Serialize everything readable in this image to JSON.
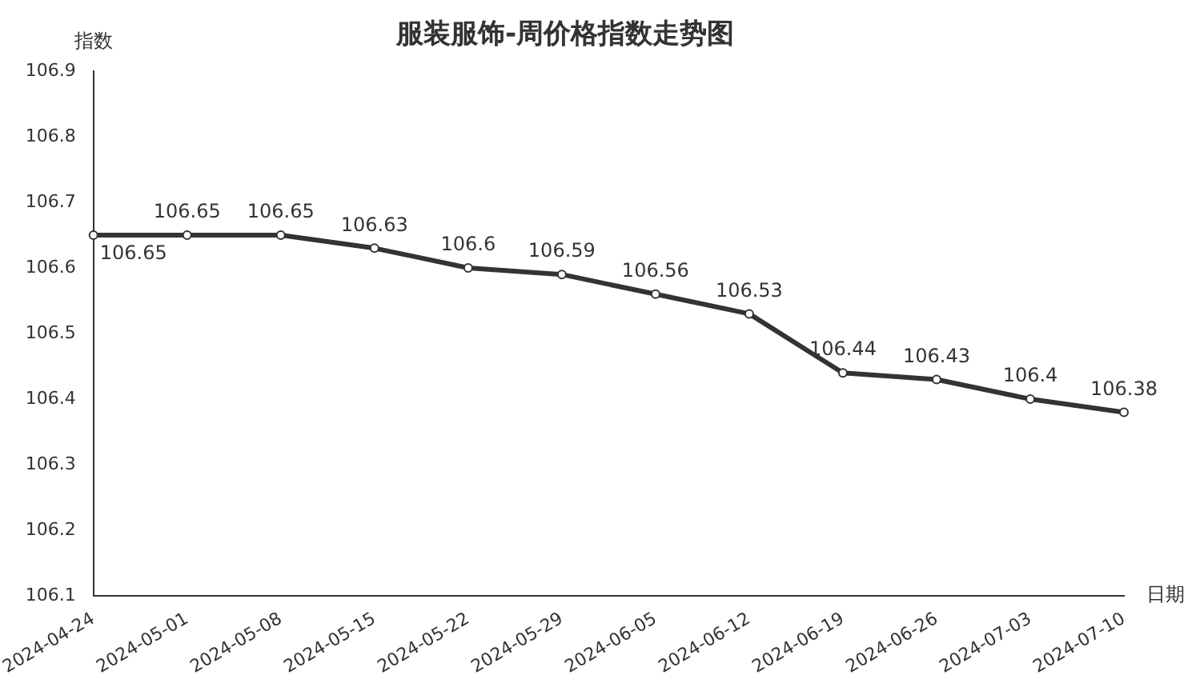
{
  "chart_data": {
    "type": "line",
    "title": "服装服饰-周价格指数走势图",
    "xlabel": "日期",
    "ylabel": "指数",
    "categories": [
      "2024-04-24",
      "2024-05-01",
      "2024-05-08",
      "2024-05-15",
      "2024-05-22",
      "2024-05-29",
      "2024-06-05",
      "2024-06-12",
      "2024-06-19",
      "2024-06-26",
      "2024-07-03",
      "2024-07-10"
    ],
    "series": [
      {
        "color": "#333333",
        "values": [
          106.65,
          106.65,
          106.65,
          106.63,
          106.6,
          106.59,
          106.56,
          106.53,
          106.44,
          106.43,
          106.4,
          106.38
        ]
      }
    ],
    "ylim": [
      106.1,
      106.9
    ],
    "yticks": [
      106.1,
      106.2,
      106.3,
      106.4,
      106.5,
      106.6,
      106.7,
      106.8,
      106.9
    ],
    "data_labels": true,
    "grid": false,
    "legend": false,
    "marker": "circle",
    "line_style": "solid"
  }
}
